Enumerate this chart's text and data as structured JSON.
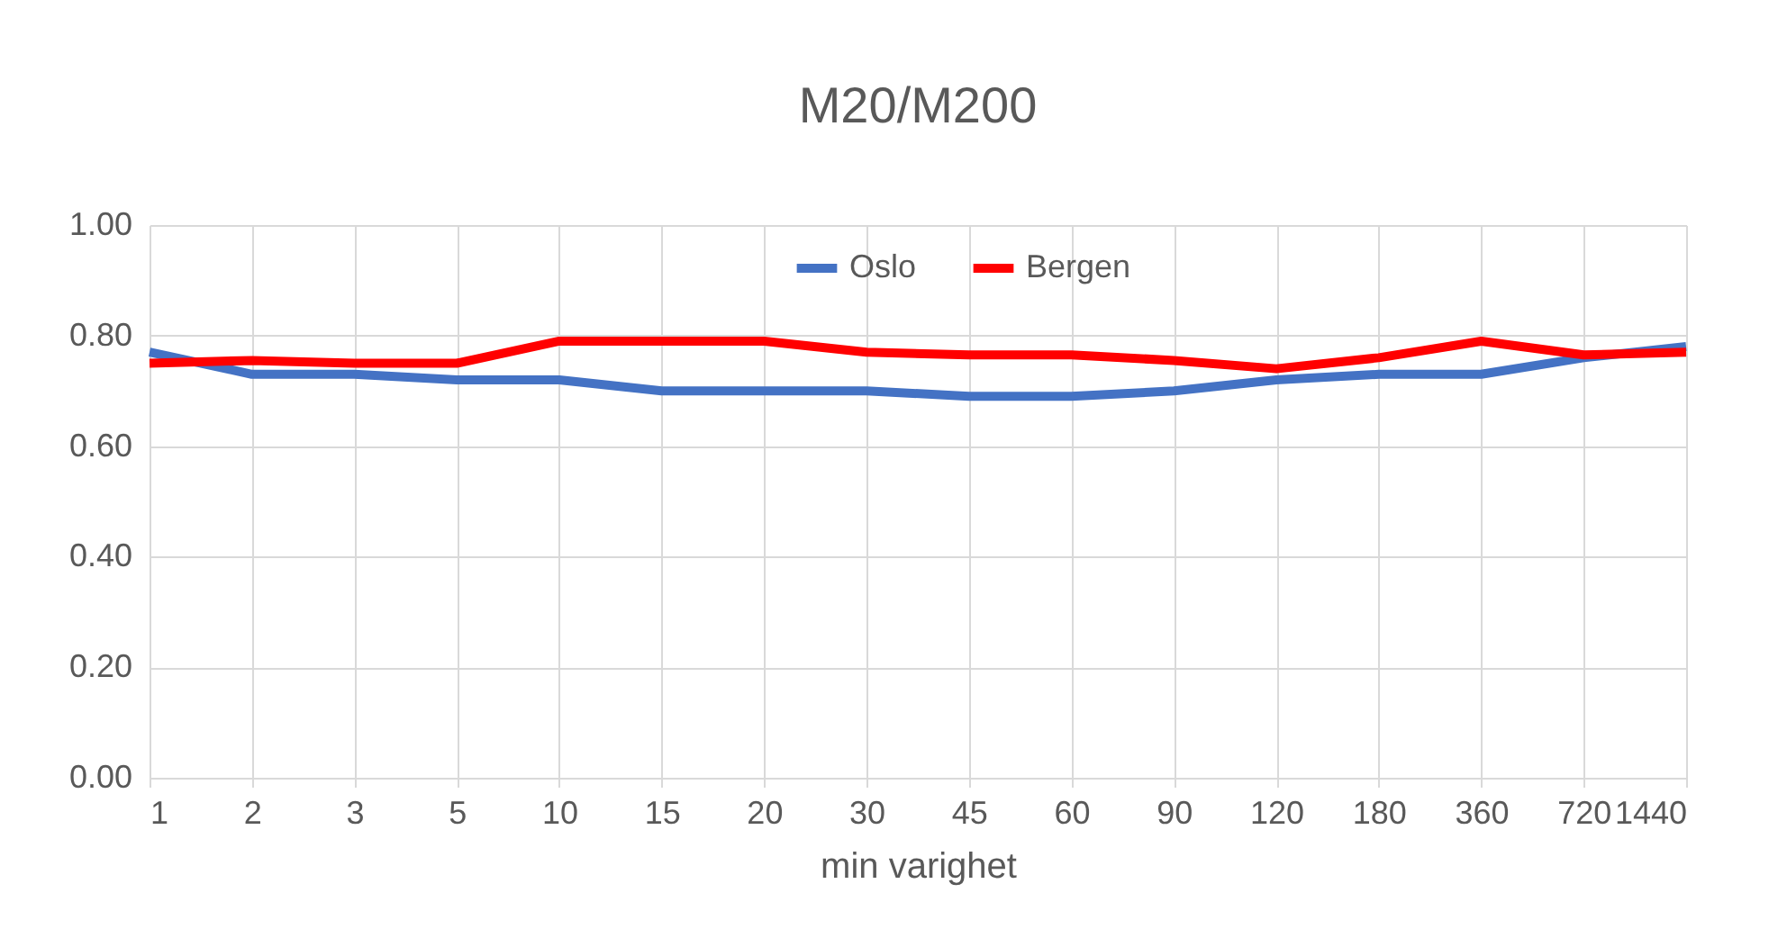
{
  "chart_data": {
    "type": "line",
    "title": "M20/M200",
    "xlabel": "min varighet",
    "categories": [
      "1",
      "2",
      "3",
      "5",
      "10",
      "15",
      "20",
      "30",
      "45",
      "60",
      "90",
      "120",
      "180",
      "360",
      "720",
      "1440"
    ],
    "series": [
      {
        "name": "Oslo",
        "color": "#4472c4",
        "values": [
          0.77,
          0.73,
          0.73,
          0.72,
          0.72,
          0.7,
          0.7,
          0.7,
          0.69,
          0.69,
          0.7,
          0.72,
          0.73,
          0.73,
          0.76,
          0.78
        ]
      },
      {
        "name": "Bergen",
        "color": "#ff0000",
        "values": [
          0.75,
          0.755,
          0.75,
          0.75,
          0.79,
          0.79,
          0.79,
          0.77,
          0.765,
          0.765,
          0.755,
          0.74,
          0.76,
          0.79,
          0.765,
          0.77
        ]
      }
    ],
    "ylim": [
      0,
      1
    ],
    "yticks": [
      {
        "value": 0,
        "label": "0.00"
      },
      {
        "value": 0.2,
        "label": "0.20"
      },
      {
        "value": 0.4,
        "label": "0.40"
      },
      {
        "value": 0.6,
        "label": "0.60"
      },
      {
        "value": 0.8,
        "label": "0.80"
      },
      {
        "value": 1,
        "label": "1.00"
      }
    ],
    "grid": true,
    "legend": "top",
    "marker": "none",
    "line_style": "solid"
  }
}
